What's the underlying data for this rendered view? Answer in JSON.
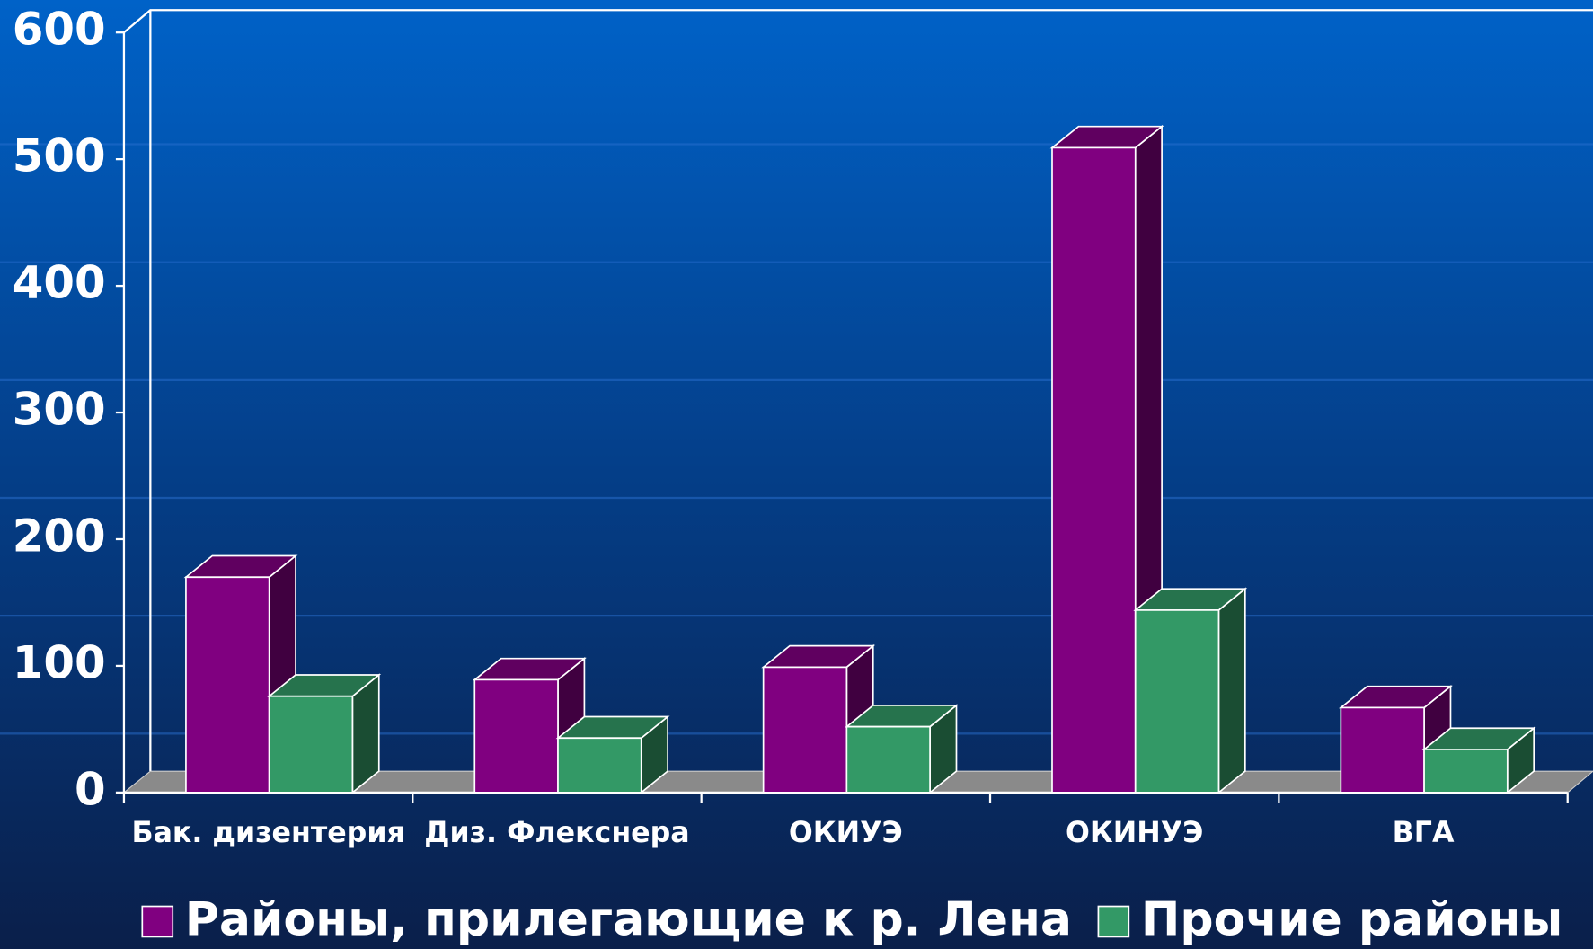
{
  "chart_data": {
    "type": "bar3d",
    "categories": [
      "Бак. дизентерия",
      "Диз. Флекснера",
      "ОКИУЭ",
      "ОКИНУЭ",
      "ВГА"
    ],
    "series": [
      {
        "name": "Районы, прилегающие к р. Лена",
        "color": "#800080",
        "values": [
          170,
          89,
          99,
          509,
          67
        ]
      },
      {
        "name": "Прочие районы",
        "color": "#339966",
        "values": [
          76,
          43,
          52,
          144,
          34
        ]
      }
    ],
    "ylim": [
      0,
      600
    ],
    "yticks": [
      0,
      100,
      200,
      300,
      400,
      500,
      600
    ],
    "legend": "bottom"
  }
}
